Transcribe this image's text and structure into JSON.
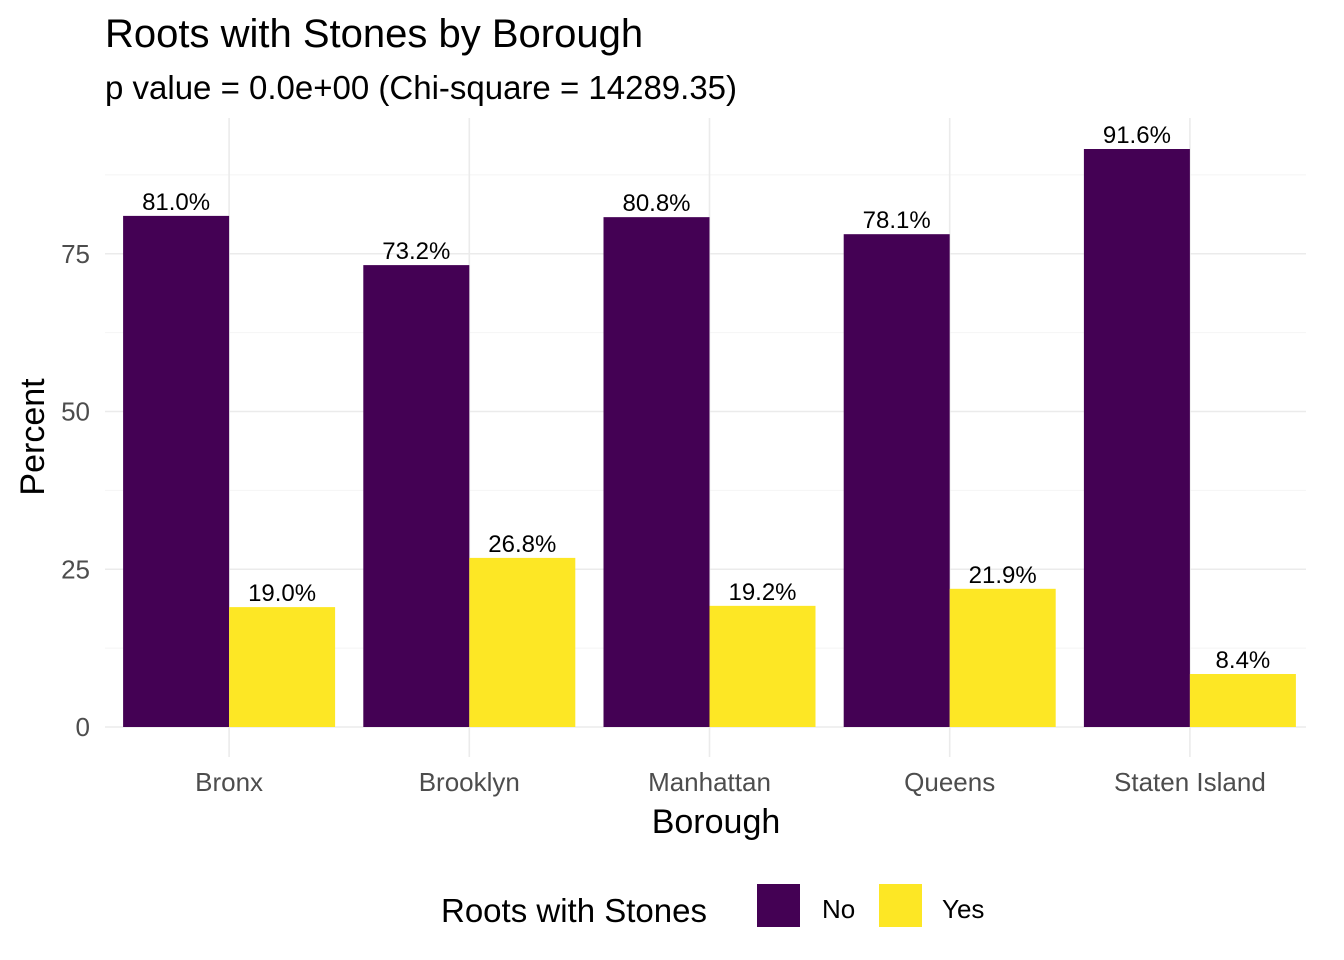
{
  "chart_data": {
    "type": "bar",
    "title": "Roots with Stones by Borough",
    "subtitle": "p value = 0.0e+00 (Chi-square = 14289.35)",
    "xlabel": "Borough",
    "ylabel": "Percent",
    "categories": [
      "Bronx",
      "Brooklyn",
      "Manhattan",
      "Queens",
      "Staten Island"
    ],
    "series": [
      {
        "name": "No",
        "color": "#440154",
        "values": [
          81.0,
          73.2,
          80.8,
          78.1,
          91.6
        ],
        "labels": [
          "81.0%",
          "73.2%",
          "80.8%",
          "78.1%",
          "91.6%"
        ]
      },
      {
        "name": "Yes",
        "color": "#FDE725",
        "values": [
          19.0,
          26.8,
          19.2,
          21.9,
          8.4
        ],
        "labels": [
          "19.0%",
          "26.8%",
          "19.2%",
          "21.9%",
          "8.4%"
        ]
      }
    ],
    "y_ticks": [
      0,
      25,
      50,
      75
    ],
    "y_tick_labels": [
      "0",
      "25",
      "50",
      "75"
    ],
    "ylim": [
      0,
      96.2
    ],
    "grid": true,
    "legend": {
      "title": "Roots with Stones",
      "position": "bottom"
    }
  }
}
